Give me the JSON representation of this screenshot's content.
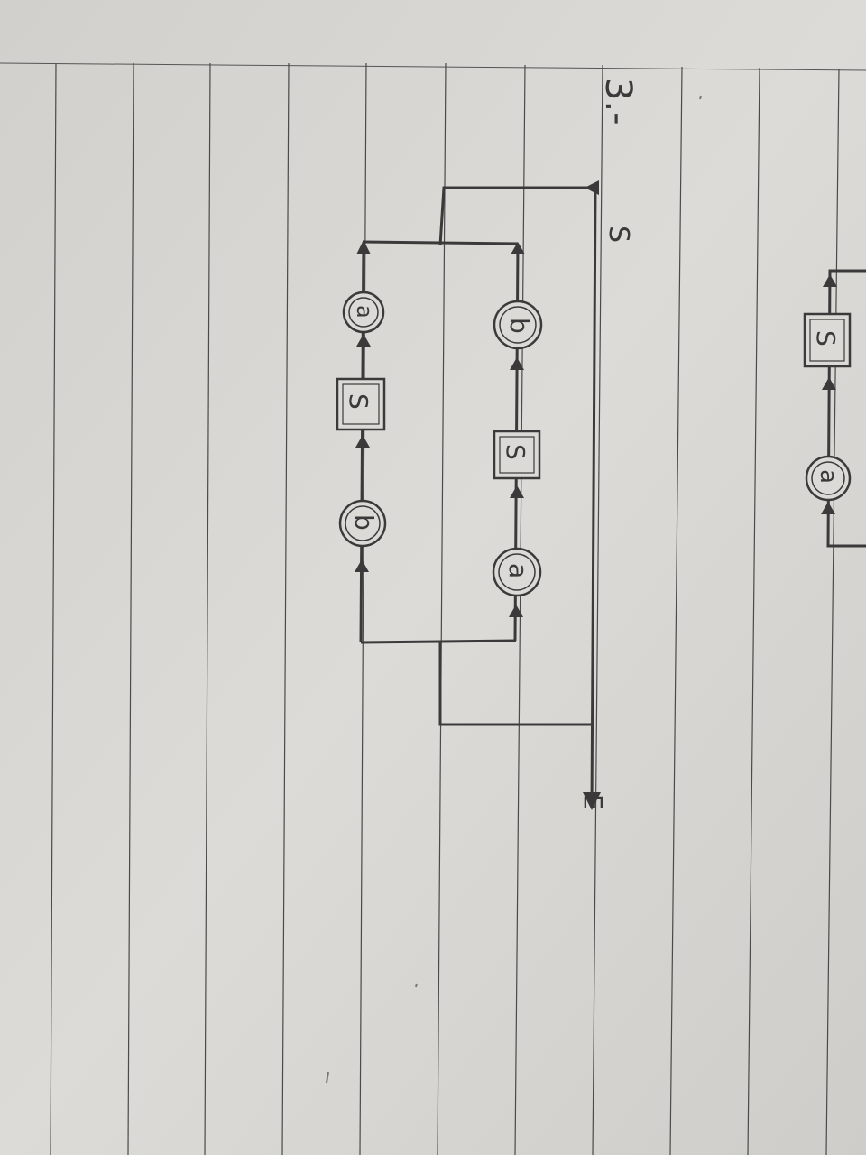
{
  "heading": "3.-",
  "start_label": "S",
  "end_label": "E",
  "top_branch": {
    "nodes": [
      {
        "kind": "circle",
        "label": "a"
      },
      {
        "kind": "box",
        "label": "S"
      },
      {
        "kind": "circle",
        "label": "b"
      }
    ]
  },
  "bottom_branch": {
    "nodes": [
      {
        "kind": "circle",
        "label": "b"
      },
      {
        "kind": "box",
        "label": "S"
      },
      {
        "kind": "circle",
        "label": "a"
      }
    ]
  },
  "partial_branch": {
    "nodes": [
      {
        "kind": "circle",
        "label": "a"
      },
      {
        "kind": "box",
        "label": "S"
      }
    ]
  },
  "colors": {
    "paper": "#dcdad6",
    "rule_line": "#4a4a4a",
    "ink": "#3a3a3a"
  }
}
